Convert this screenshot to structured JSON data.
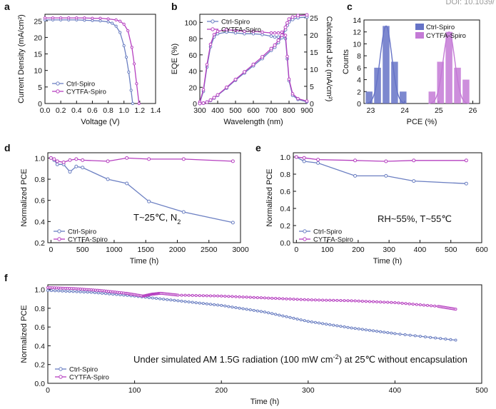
{
  "header": {
    "doi": "DOI: 10.1039/"
  },
  "colors": {
    "ctrl": "#6b7fc2",
    "cytfa": "#b640c0",
    "ctrl_bar": "#6673c7",
    "cytfa_bar": "#c47ad6"
  },
  "chart_data": [
    {
      "panel": "a",
      "type": "line",
      "xlabel": "Voltage (V)",
      "ylabel": "Current Density (mA/cm²)",
      "xlim": [
        0,
        1.4
      ],
      "ylim": [
        0,
        27
      ],
      "xticks": [
        "0.0",
        "0.2",
        "0.4",
        "0.6",
        "0.8",
        "1.0",
        "1.2",
        "1.4"
      ],
      "yticks": [
        "0",
        "5",
        "10",
        "15",
        "20",
        "25"
      ],
      "legend_position": "bottom-left",
      "series": [
        {
          "name": "Ctrl-Spiro",
          "x": [
            0,
            0.1,
            0.2,
            0.3,
            0.4,
            0.5,
            0.6,
            0.7,
            0.8,
            0.85,
            0.9,
            0.95,
            1.0,
            1.03,
            1.06,
            1.09,
            1.11
          ],
          "y": [
            25.3,
            25.3,
            25.3,
            25.3,
            25.3,
            25.2,
            25.1,
            25.0,
            24.7,
            24.3,
            23.4,
            21.5,
            17.5,
            14.0,
            9.5,
            4.0,
            0
          ]
        },
        {
          "name": "CYTFA-Spiro",
          "x": [
            0,
            0.1,
            0.2,
            0.3,
            0.4,
            0.5,
            0.6,
            0.7,
            0.8,
            0.9,
            0.95,
            1.0,
            1.05,
            1.1,
            1.13,
            1.16,
            1.19
          ],
          "y": [
            25.9,
            25.9,
            25.9,
            25.9,
            25.9,
            25.9,
            25.8,
            25.8,
            25.6,
            25.3,
            24.9,
            24.0,
            22.0,
            17.0,
            12.0,
            6.0,
            0
          ]
        }
      ]
    },
    {
      "panel": "b",
      "type": "line",
      "xlabel": "Wavelength (nm)",
      "ylabel": "EQE (%)",
      "y2label": "Calculated Jsc (mA/cm²)",
      "xlim": [
        300,
        900
      ],
      "ylim": [
        0,
        110
      ],
      "y2lim": [
        0,
        26
      ],
      "xticks": [
        "300",
        "400",
        "500",
        "600",
        "700",
        "800",
        "900"
      ],
      "yticks": [
        "0",
        "20",
        "40",
        "60",
        "80",
        "100"
      ],
      "y2ticks": [
        "0",
        "5",
        "10",
        "15",
        "20",
        "25"
      ],
      "legend_position": "top-left",
      "series": [
        {
          "name": "Ctrl-Spiro",
          "x": [
            300,
            320,
            340,
            360,
            380,
            400,
            450,
            500,
            550,
            600,
            650,
            700,
            720,
            740,
            760,
            780,
            790,
            800,
            820,
            850,
            900
          ],
          "y": [
            1,
            15,
            45,
            70,
            82,
            86,
            88,
            87,
            86,
            86,
            85,
            83,
            82,
            82,
            83,
            80,
            55,
            28,
            10,
            5,
            2
          ],
          "jsc": [
            0,
            0.1,
            0.4,
            0.9,
            1.6,
            2.4,
            4.5,
            6.8,
            8.9,
            11.0,
            13.1,
            15.5,
            16.4,
            17.8,
            19.2,
            21.5,
            22.8,
            23.8,
            24.5,
            25.0,
            25.2
          ]
        },
        {
          "name": "CYTFA-Spiro",
          "x": [
            300,
            320,
            340,
            360,
            380,
            400,
            450,
            500,
            550,
            600,
            650,
            700,
            720,
            740,
            760,
            780,
            790,
            800,
            820,
            850,
            900
          ],
          "y": [
            2,
            17,
            48,
            73,
            85,
            89,
            91,
            90,
            89,
            89,
            88,
            87,
            87,
            87,
            88,
            84,
            58,
            30,
            12,
            6,
            3
          ],
          "jsc": [
            0,
            0.1,
            0.4,
            1.0,
            1.7,
            2.5,
            4.7,
            7.0,
            9.2,
            11.4,
            13.6,
            16.0,
            17.0,
            18.4,
            19.9,
            22.2,
            23.5,
            24.6,
            25.2,
            25.6,
            25.8
          ]
        }
      ]
    },
    {
      "panel": "c",
      "type": "bar",
      "xlabel": "PCE (%)",
      "ylabel": "Counts",
      "xlim": [
        22.8,
        26.2
      ],
      "ylim": [
        0,
        14
      ],
      "xticks": [
        "23",
        "24",
        "25",
        "26"
      ],
      "yticks": [
        "0",
        "2",
        "4",
        "6",
        "8",
        "10",
        "12",
        "14"
      ],
      "legend_position": "top-right",
      "series": [
        {
          "name": "Ctrl-Spiro",
          "x": [
            22.95,
            23.2,
            23.45,
            23.7,
            23.95
          ],
          "values": [
            2,
            6,
            13,
            7,
            2
          ]
        },
        {
          "name": "CYTFA-Spiro",
          "x": [
            24.8,
            25.05,
            25.3,
            25.55,
            25.8
          ],
          "values": [
            2,
            7,
            12,
            6,
            4
          ]
        }
      ]
    },
    {
      "panel": "d",
      "type": "line",
      "xlabel": "Time (h)",
      "ylabel": "Normalized PCE",
      "annotation": "T~25℃,  N",
      "annotation_sub": "2",
      "xlim": [
        -50,
        3000
      ],
      "ylim": [
        0.2,
        1.05
      ],
      "xticks": [
        "0",
        "500",
        "1000",
        "1500",
        "2000",
        "2500",
        "3000"
      ],
      "yticks": [
        "0.2",
        "0.4",
        "0.6",
        "0.8",
        "1.0"
      ],
      "legend_position": "bottom-left",
      "series": [
        {
          "name": "Ctrl-Spiro",
          "x": [
            0,
            50,
            100,
            200,
            300,
            400,
            500,
            900,
            1200,
            1550,
            2100,
            2880
          ],
          "y": [
            1.0,
            0.98,
            0.94,
            0.94,
            0.87,
            0.92,
            0.91,
            0.8,
            0.76,
            0.59,
            0.49,
            0.39
          ]
        },
        {
          "name": "CYTFA-Spiro",
          "x": [
            0,
            50,
            100,
            200,
            300,
            400,
            500,
            900,
            1200,
            1550,
            2100,
            2880
          ],
          "y": [
            1.0,
            0.99,
            0.97,
            0.96,
            0.98,
            0.99,
            0.98,
            0.97,
            1.0,
            0.99,
            0.99,
            0.97
          ]
        }
      ]
    },
    {
      "panel": "e",
      "type": "line",
      "xlabel": "Time (h)",
      "ylabel": "Normalized PCE",
      "annotation": "RH~55%, T~55℃",
      "xlim": [
        -10,
        600
      ],
      "ylim": [
        0,
        1.05
      ],
      "xticks": [
        "0",
        "100",
        "200",
        "300",
        "400",
        "500",
        "600"
      ],
      "yticks": [
        "0.0",
        "0.2",
        "0.4",
        "0.6",
        "0.8",
        "1.0"
      ],
      "legend_position": "bottom-left",
      "series": [
        {
          "name": "Ctrl-Spiro",
          "x": [
            0,
            25,
            70,
            190,
            290,
            380,
            550
          ],
          "y": [
            1.0,
            0.95,
            0.93,
            0.78,
            0.78,
            0.72,
            0.69
          ]
        },
        {
          "name": "CYTFA-Spiro",
          "x": [
            0,
            25,
            70,
            190,
            290,
            380,
            550
          ],
          "y": [
            1.0,
            0.99,
            0.97,
            0.96,
            0.95,
            0.96,
            0.96
          ]
        }
      ]
    },
    {
      "panel": "f",
      "type": "line",
      "xlabel": "Time (h)",
      "ylabel": "Normalized PCE",
      "annotation": "Under simulated AM 1.5G radiation (100 mW cm",
      "annotation_sup": "-2",
      "annotation_tail": ") at 25℃ without encapsulation",
      "xlim": [
        0,
        500
      ],
      "ylim": [
        0,
        1.05
      ],
      "xticks": [
        "0",
        "100",
        "200",
        "300",
        "400",
        "500"
      ],
      "yticks": [
        "0.0",
        "0.2",
        "0.4",
        "0.6",
        "0.8",
        "1.0"
      ],
      "legend_position": "bottom-left",
      "series": [
        {
          "name": "Ctrl-Spiro",
          "x": [
            0,
            50,
            100,
            150,
            200,
            250,
            300,
            350,
            400,
            470
          ],
          "y": [
            0.99,
            0.97,
            0.93,
            0.88,
            0.83,
            0.76,
            0.66,
            0.59,
            0.53,
            0.46
          ]
        },
        {
          "name": "CYTFA-Spiro",
          "x": [
            0,
            30,
            60,
            90,
            110,
            120,
            130,
            150,
            200,
            250,
            300,
            350,
            400,
            450,
            470
          ],
          "y": [
            1.02,
            1.01,
            0.99,
            0.96,
            0.93,
            0.95,
            0.96,
            0.94,
            0.93,
            0.91,
            0.89,
            0.88,
            0.86,
            0.82,
            0.79
          ]
        }
      ]
    }
  ]
}
